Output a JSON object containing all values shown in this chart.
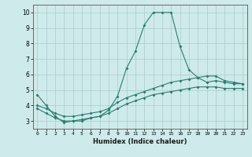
{
  "xlabel": "Humidex (Indice chaleur)",
  "x_values": [
    0,
    1,
    2,
    3,
    4,
    5,
    6,
    7,
    8,
    9,
    10,
    11,
    12,
    13,
    14,
    15,
    16,
    17,
    18,
    19,
    20,
    21,
    22,
    23
  ],
  "line1_y": [
    4.7,
    4.0,
    3.3,
    2.9,
    3.0,
    3.0,
    3.2,
    3.3,
    3.7,
    4.6,
    6.4,
    7.5,
    9.2,
    10.0,
    10.0,
    10.0,
    7.8,
    6.3,
    5.8,
    5.5,
    5.6,
    5.5,
    5.4,
    5.4
  ],
  "line2_y": [
    4.0,
    3.8,
    3.5,
    3.3,
    3.3,
    3.4,
    3.5,
    3.6,
    3.8,
    4.2,
    4.5,
    4.7,
    4.9,
    5.1,
    5.3,
    5.5,
    5.6,
    5.7,
    5.8,
    5.9,
    5.9,
    5.6,
    5.5,
    5.4
  ],
  "line3_y": [
    3.8,
    3.5,
    3.2,
    3.0,
    3.0,
    3.1,
    3.2,
    3.3,
    3.5,
    3.8,
    4.1,
    4.3,
    4.5,
    4.7,
    4.8,
    4.9,
    5.0,
    5.1,
    5.2,
    5.2,
    5.2,
    5.1,
    5.1,
    5.1
  ],
  "line_color": "#2a7d6e",
  "bg_color": "#ceeaea",
  "grid_color": "#aacccc",
  "ylim": [
    2.5,
    10.5
  ],
  "xlim": [
    -0.5,
    23.5
  ],
  "yticks": [
    3,
    4,
    5,
    6,
    7,
    8,
    9,
    10
  ],
  "xticks": [
    0,
    1,
    2,
    3,
    4,
    5,
    6,
    7,
    8,
    9,
    10,
    11,
    12,
    13,
    14,
    15,
    16,
    17,
    18,
    19,
    20,
    21,
    22,
    23
  ]
}
